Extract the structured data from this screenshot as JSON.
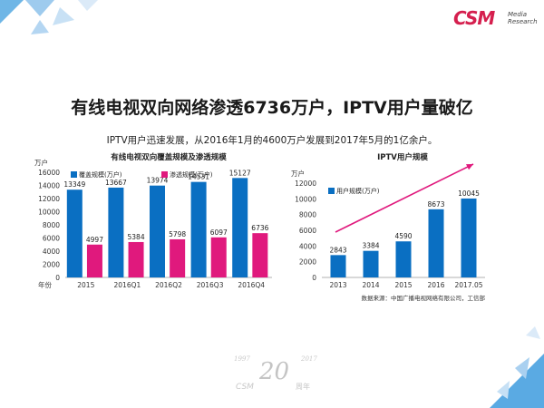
{
  "header": {
    "logo_main": "CSM",
    "logo_sub_1": "Media",
    "logo_sub_2": "Research"
  },
  "title": "有线电视双向网络渗透6736万户，IPTV用户量破亿",
  "subtitle": "IPTV用户迅速发展，从2016年1月的4600万户发展到2017年5月的1亿余户。",
  "colors": {
    "blue": "#0a6fc2",
    "pink": "#e0197d",
    "arrow": "#e0197d",
    "logo": "#d51f4e"
  },
  "footer": {
    "years_left": "1997",
    "years_right": "2017",
    "number": "20",
    "brand": "CSM",
    "anniv": "周年"
  },
  "chart_data": [
    {
      "type": "bar",
      "title": "有线电视双向覆盖规模及渗透规模",
      "ylabel": "万户",
      "xlabel": "年份",
      "ylim": [
        0,
        16000
      ],
      "yticks": [
        0,
        2000,
        4000,
        6000,
        8000,
        10000,
        12000,
        14000,
        16000
      ],
      "ytick_labels": [
        "0",
        "2000",
        "4000",
        "6000",
        "8000",
        "10000",
        "12000",
        "14000",
        "16000"
      ],
      "categories": [
        "2015",
        "2016Q1",
        "2016Q2",
        "2016Q3",
        "2016Q4"
      ],
      "series": [
        {
          "name": "覆盖规模(万户)",
          "color": "#0a6fc2",
          "values": [
            13349,
            13667,
            13974,
            14531,
            15127
          ]
        },
        {
          "name": "渗透规模(万户)",
          "color": "#e0197d",
          "values": [
            4997,
            5384,
            5798,
            6097,
            6736
          ]
        }
      ],
      "value_labels": [
        [
          "13349",
          "13667",
          "13974",
          "14531",
          "15127"
        ],
        [
          "4997",
          "5384",
          "5798",
          "6097",
          "6736"
        ]
      ],
      "legend": "top-left",
      "grid": false
    },
    {
      "type": "bar",
      "title": "IPTV用户规模",
      "ylabel": "万户",
      "xlabel": "",
      "ylim": [
        0,
        12000
      ],
      "yticks": [
        0,
        2000,
        4000,
        6000,
        8000,
        10000,
        12000
      ],
      "ytick_labels": [
        "0",
        "2000",
        "4000",
        "6000",
        "8000",
        "10000",
        "12000"
      ],
      "categories": [
        "2013",
        "2014",
        "2015",
        "2016",
        "2017.05"
      ],
      "series": [
        {
          "name": "用户规模(万户)",
          "color": "#0a6fc2",
          "values": [
            2843,
            3384,
            4590,
            8673,
            10045
          ]
        }
      ],
      "value_labels": [
        [
          "2843",
          "3384",
          "4590",
          "8673",
          "10045"
        ]
      ],
      "legend": "top-left",
      "grid": false,
      "trend_arrow": true,
      "source": "数据来源：中国广播电视网络有限公司，工信部"
    }
  ]
}
